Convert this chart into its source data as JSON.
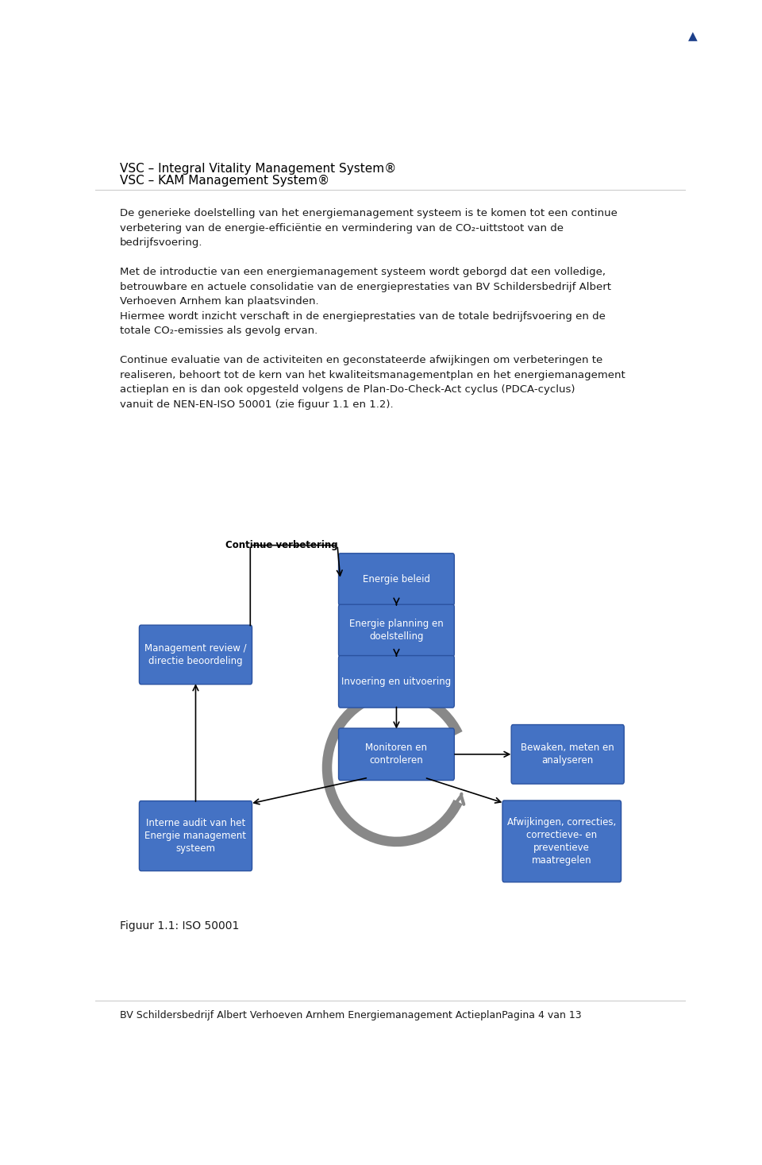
{
  "header_line1": "VSC – Integral Vitality Management System®",
  "header_line2": "VSC – KAM Management System®",
  "box_color": "#4472C4",
  "box_text_color": "#FFFFFF",
  "bg_color": "#FFFFFF",
  "text_color": "#1a1a1a",
  "footer_text": "BV Schildersbedrijf Albert Verhoeven Arnhem Energiemanagement ActieplanPagina 4 van 13",
  "figuur_text": "Figuur 1.1: ISO 50001",
  "p1_lines": [
    "De generieke doelstelling van het energiemanagement systeem is te komen tot een continue",
    "verbetering van de energie-efficiëntie en vermindering van de CO₂-uittstoot van de",
    "bedrijfsvoering."
  ],
  "p2_lines": [
    "Met de introductie van een energiemanagement systeem wordt geborgd dat een volledige,",
    "betrouwbare en actuele consolidatie van de energieprestaties van BV Schildersbedrijf Albert",
    "Verhoeven Arnhem kan plaatsvinden.",
    "Hiermee wordt inzicht verschaft in de energieprestaties van de totale bedrijfsvoering en de",
    "totale CO₂-emissies als gevolg ervan."
  ],
  "p3_lines": [
    "Continue evaluatie van de activiteiten en geconstateerde afwijkingen om verbeteringen te",
    "realiseren, behoort tot de kern van het kwaliteitsmanagementplan en het energiemanagement",
    "actieplan en is dan ook opgesteld volgens de Plan-Do-Check-Act cyclus (PDCA-cyclus)",
    "vanuit de NEN-EN-ISO 50001 (zie figuur 1.1 en 1.2)."
  ]
}
